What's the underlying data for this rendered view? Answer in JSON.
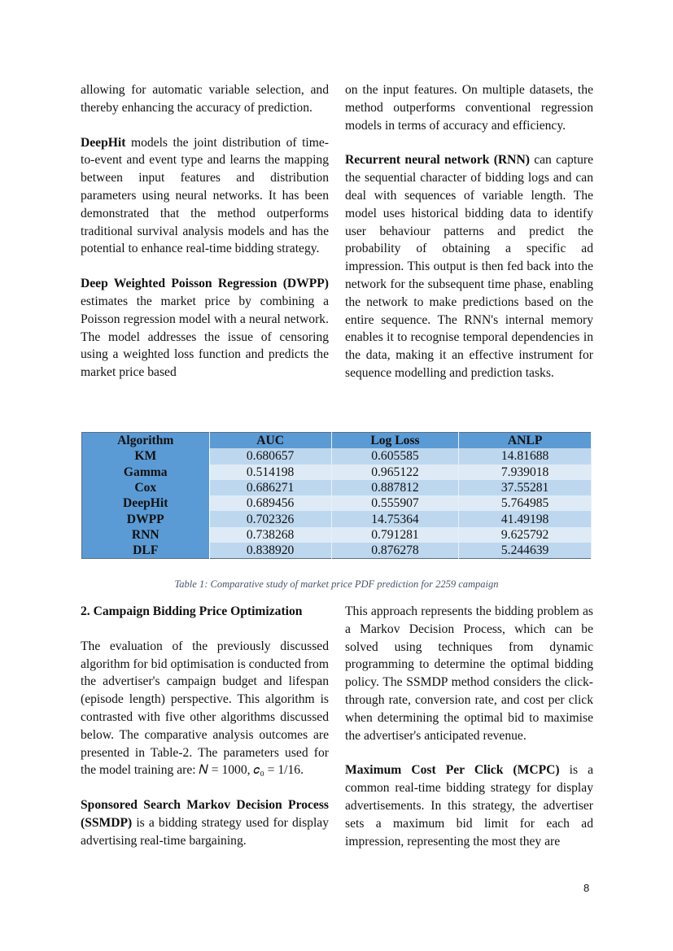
{
  "left_top": [
    {
      "bold": "",
      "text": "allowing for automatic variable selection, and thereby enhancing the accuracy of prediction."
    },
    {
      "bold": "DeepHit",
      "text": " models the joint distribution of time-to-event and event type and learns the mapping between input features and distribution parameters using neural networks. It has been demonstrated that the method outperforms traditional survival analysis models and has the potential to enhance real-time bidding strategy."
    },
    {
      "bold": "Deep Weighted Poisson Regression (DWPP)",
      "text": " estimates the market price by combining a Poisson regression model with a neural network. The model addresses the issue of censoring using a weighted loss function and predicts the market price based"
    }
  ],
  "right_top": [
    {
      "bold": "",
      "text": "on the input features. On multiple datasets, the method outperforms conventional regression models in terms of accuracy and efficiency."
    },
    {
      "bold": "Recurrent neural network (RNN)",
      "text": " can capture the sequential character of bidding logs and can deal with sequences of variable length. The model uses historical bidding data to identify user behaviour patterns and predict the probability of obtaining a specific ad impression. This output is then fed back into the network for the subsequent time phase, enabling the network to make predictions based on the entire sequence. The RNN's internal memory enables it to recognise temporal dependencies in the data, making it an effective instrument for sequence modelling and prediction tasks."
    }
  ],
  "table": {
    "headers": [
      "Algorithm",
      "AUC",
      "Log Loss",
      "ANLP"
    ],
    "rows": [
      [
        "KM",
        "0.680657",
        "0.605585",
        "14.81688"
      ],
      [
        "Gamma",
        "0.514198",
        "0.965122",
        "7.939018"
      ],
      [
        "Cox",
        "0.686271",
        "0.887812",
        "37.55281"
      ],
      [
        "DeepHit",
        "0.689456",
        "0.555907",
        "5.764985"
      ],
      [
        "DWPP",
        "0.702326",
        "14.75364",
        "41.49198"
      ],
      [
        "RNN",
        "0.738268",
        "0.791281",
        "9.625792"
      ],
      [
        "DLF",
        "0.838920",
        "0.876278",
        "5.244639"
      ]
    ],
    "caption": "Table 1: Comparative study of market price PDF prediction for 2259 campaign",
    "colors": {
      "header": "#5b9bd5",
      "row_odd": "#bdd7ee",
      "row_even": "#deebf7"
    }
  },
  "section_heading": "2.  Campaign Bidding Price Optimization",
  "left_bottom": [
    {
      "bold": "",
      "text": "The evaluation of the previously discussed algorithm for bid optimisation is conducted from the advertiser's campaign budget and lifespan (episode length) perspective. This algorithm is contrasted with five other algorithms discussed below. The comparative analysis outcomes are presented in Table-2. The parameters used for the model training are: 𝑁 = 1000, 𝑐₀ = 1/16."
    },
    {
      "bold": "Sponsored Search Markov Decision Process (SSMDP)",
      "text": " is a bidding strategy used for display advertising real-time bargaining."
    }
  ],
  "right_bottom": [
    {
      "bold": "",
      "text": "This approach represents the bidding problem as a Markov Decision Process, which can be solved using techniques from dynamic programming to determine the optimal bidding policy. The SSMDP method considers the click-through rate, conversion rate, and cost per click when determining the optimal bid to maximise the advertiser's anticipated revenue."
    },
    {
      "bold": "Maximum Cost Per Click (MCPC)",
      "text": " is a common real-time bidding strategy for display advertisements. In this strategy, the advertiser sets a maximum bid limit for each ad impression, representing the most they are"
    }
  ],
  "page_number": "8"
}
